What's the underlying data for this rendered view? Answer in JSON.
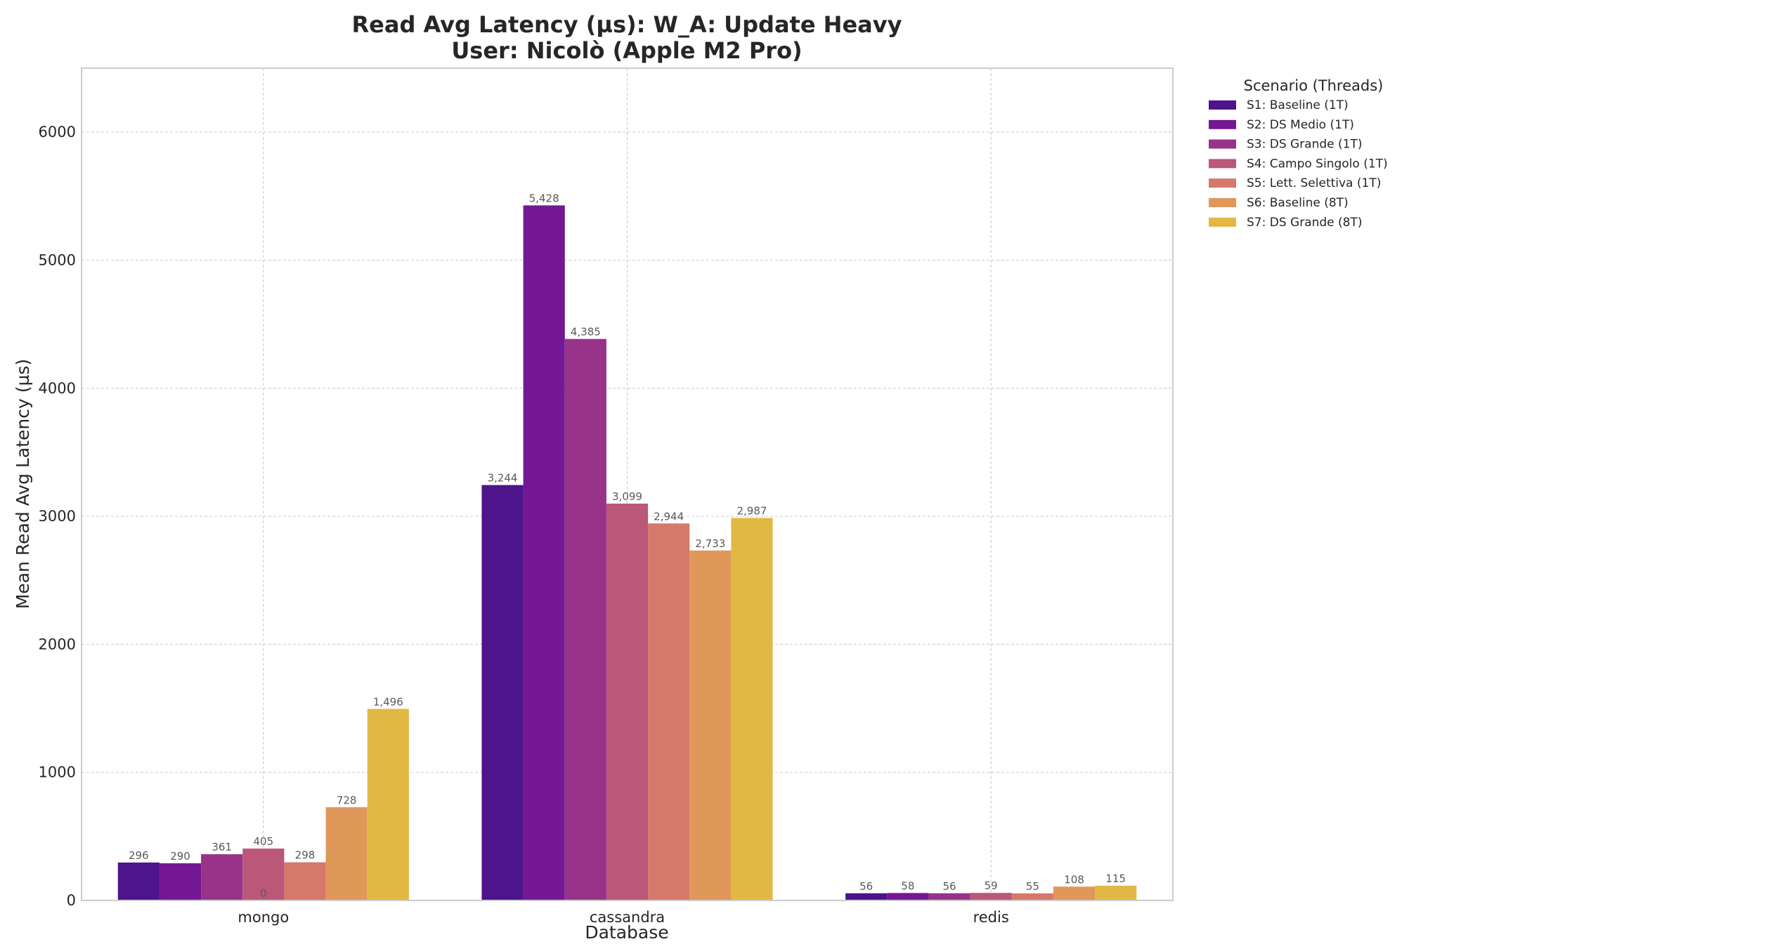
{
  "chart_data": {
    "type": "bar",
    "title": "Read Avg Latency (µs): W_A: Update Heavy",
    "subtitle": "User: Nicolò (Apple M2 Pro)",
    "xlabel": "Database",
    "ylabel": "Mean Read Avg Latency (µs)",
    "ylim": [
      0,
      6500
    ],
    "yticks": [
      "0",
      "1000",
      "2000",
      "3000",
      "4000",
      "5000",
      "6000"
    ],
    "grid": true,
    "legend_title": "Scenario (Threads)",
    "legend_position": "outside-top-right",
    "categories": [
      "mongo",
      "cassandra",
      "redis"
    ],
    "series": [
      {
        "name": "S1: Baseline (1T)",
        "color": "#4e148c",
        "values": [
          296,
          3244,
          56
        ],
        "labels": [
          "296",
          "3,244",
          "56"
        ]
      },
      {
        "name": "S2: DS Medio (1T)",
        "color": "#731794",
        "values": [
          290,
          5428,
          58
        ],
        "labels": [
          "290",
          "5,428",
          "58"
        ]
      },
      {
        "name": "S3: DS Grande (1T)",
        "color": "#973389",
        "values": [
          361,
          4385,
          56
        ],
        "labels": [
          "361",
          "4,385",
          "56"
        ]
      },
      {
        "name": "S4: Campo Singolo (1T)",
        "color": "#bb5779",
        "values": [
          405,
          3099,
          59
        ],
        "labels": [
          "405",
          "3,099",
          "59"
        ]
      },
      {
        "name": "S5: Lett. Selettiva (1T)",
        "color": "#d6786b",
        "values": [
          298,
          2944,
          55
        ],
        "labels": [
          "298",
          "2,944",
          "55"
        ]
      },
      {
        "name": "S6: Baseline (8T)",
        "color": "#e0975a",
        "values": [
          728,
          2733,
          108
        ],
        "labels": [
          "728",
          "2,733",
          "108"
        ]
      },
      {
        "name": "S7: DS Grande (8T)",
        "color": "#e2b845",
        "values": [
          1496,
          2987,
          115
        ],
        "labels": [
          "1,496",
          "2,987",
          "115"
        ]
      }
    ],
    "annotations": [
      {
        "text": "0",
        "category": "mongo",
        "value": 0
      }
    ]
  }
}
